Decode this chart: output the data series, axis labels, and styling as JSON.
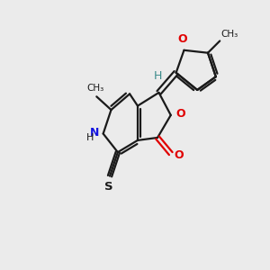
{
  "bg_color": "#ebebeb",
  "bond_color": "#1a1a1a",
  "o_color": "#e00000",
  "n_color": "#1414e0",
  "s_color": "#1a1a1a",
  "h_color": "#3a8a8a",
  "figsize": [
    3.0,
    3.0
  ],
  "dpi": 100,
  "xlim": [
    0,
    10
  ],
  "ylim": [
    0,
    10
  ]
}
